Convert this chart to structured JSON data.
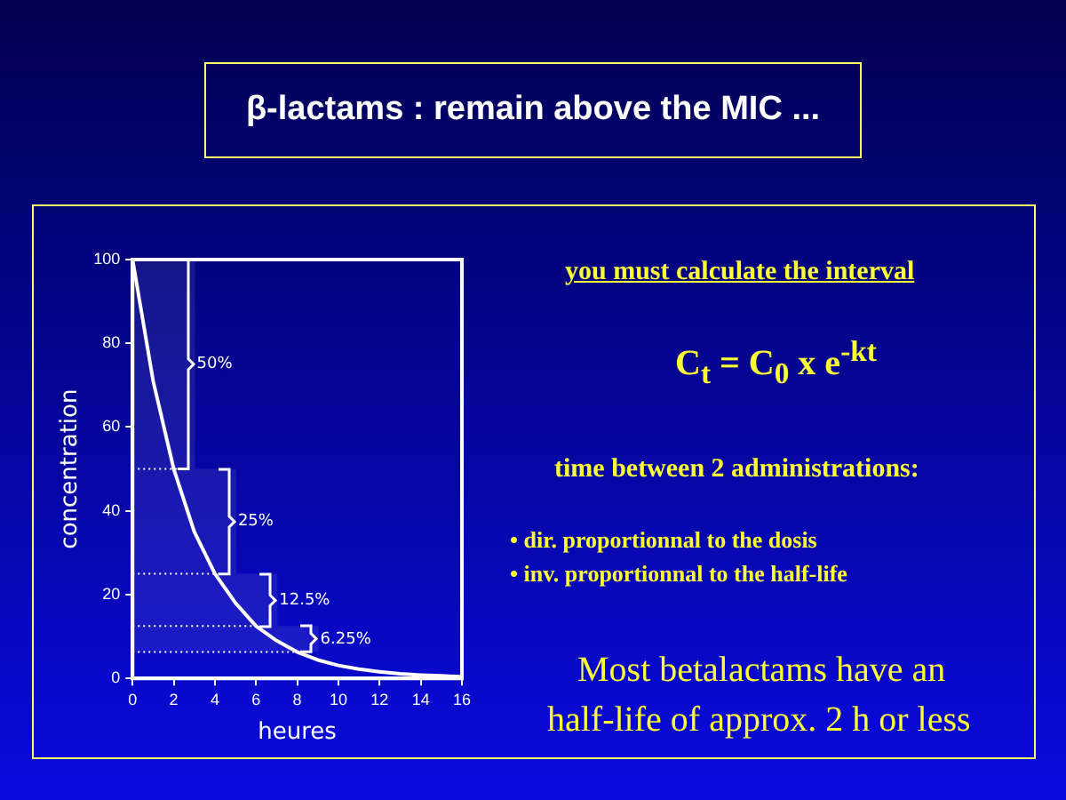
{
  "chart_data": {
    "type": "line",
    "title": "β-lactams : remain above the MIC ...",
    "xlabel": "heures",
    "ylabel": "concentration",
    "x": [
      0,
      1,
      2,
      3,
      4,
      5,
      6,
      7,
      8,
      9,
      10,
      11,
      12,
      13,
      14,
      15,
      16
    ],
    "series": [
      {
        "color": "#ffffff",
        "values": [
          100,
          71,
          50,
          35,
          25,
          18,
          12.5,
          9,
          6.3,
          4.4,
          3.1,
          2.2,
          1.6,
          1.1,
          0.8,
          0.6,
          0.4
        ]
      }
    ],
    "ref_lines": [
      {
        "axis": "y",
        "value": 50,
        "color": "#ffffff",
        "line_style": "dotted"
      },
      {
        "axis": "y",
        "value": 25,
        "color": "#ffffff",
        "line_style": "dotted"
      },
      {
        "axis": "y",
        "value": 12.5,
        "color": "#ffffff",
        "line_style": "dotted"
      },
      {
        "axis": "y",
        "value": 6.3,
        "color": "#ffffff",
        "line_style": "dotted"
      }
    ],
    "bands": [
      {
        "axis": "y",
        "from": 50,
        "to": 100,
        "label": "50%"
      },
      {
        "axis": "y",
        "from": 25,
        "to": 50,
        "label": "25%"
      },
      {
        "axis": "y",
        "from": 12.5,
        "to": 25,
        "label": "12.5%"
      },
      {
        "axis": "y",
        "from": 6.3,
        "to": 12.5,
        "label": "6.25%"
      }
    ],
    "xlim": [
      0,
      16
    ],
    "xticks": [
      0,
      2,
      4,
      6,
      8,
      10,
      12,
      14,
      16
    ],
    "ylim": [
      0,
      100
    ],
    "yticks": [
      0,
      20,
      40,
      60,
      80,
      100
    ],
    "grid": false,
    "legend": false,
    "marker": "none",
    "line_style": "solid",
    "annotations": [
      "you must calculate the interval",
      "C$_{t}$ = C$_{0}$ x e$^{-kt}$",
      "time between 2 administrations:",
      "• dir. proportionnal to the dosis",
      "• inv. proportionnal to the half-life",
      "Most betalactams have an",
      "half-life of approx. 2 h or less"
    ]
  }
}
